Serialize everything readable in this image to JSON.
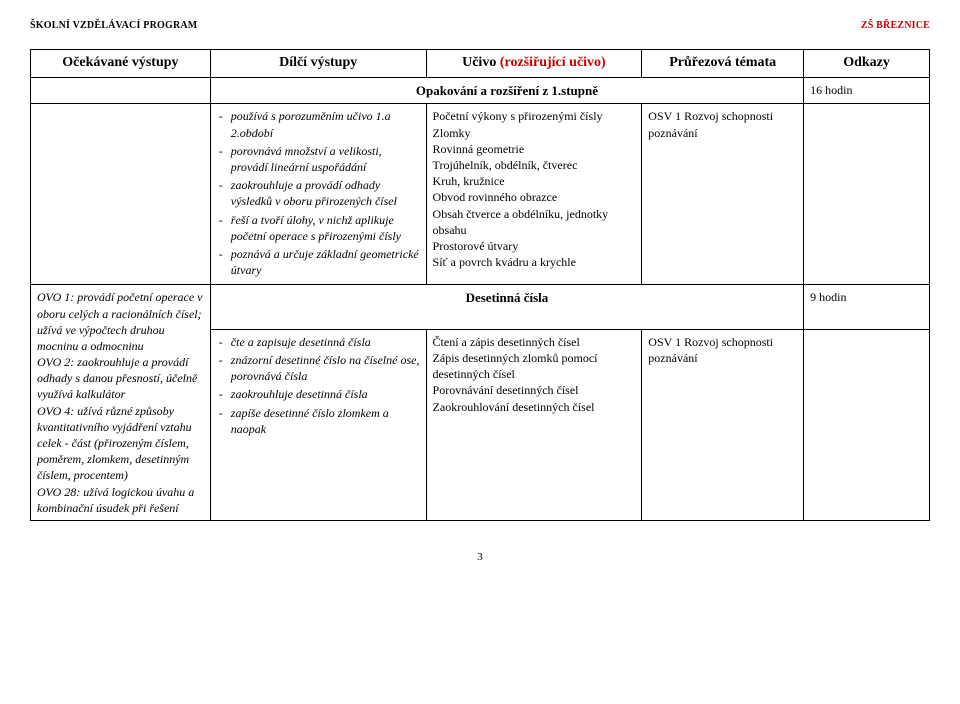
{
  "header": {
    "left": "ŠKOLNÍ VZDĚLÁVACÍ PROGRAM",
    "right": "ZŠ BŘEZNICE"
  },
  "table": {
    "headers": {
      "c1": "Očekávané výstupy",
      "c2": "Dílčí výstupy",
      "c3_pre": "Učivo ",
      "c3_red": "(rozšiřující učivo)",
      "c4": "Průřezová témata",
      "c5": "Odkazy"
    },
    "section1": {
      "title": "Opakování a rozšíření z 1.stupně",
      "hours": "16 hodin"
    },
    "row1": {
      "dilci": [
        "používá s porozuměním učivo 1.a 2.období",
        "porovnává množství a velikosti, provádí lineární uspořádání",
        "zaokrouhluje a provádí odhady výsledků v oboru přirozených čísel",
        "řeší a tvoří úlohy, v nichž aplikuje početní operace s přirozenými čísly",
        "poznává a určuje základní geometrické útvary"
      ],
      "ucivo": "Početní výkony s přirozenými čísly\nZlomky\nRovinná geometrie\nTrojúhelník, obdélník, čtverec\nKruh, kružnice\nObvod rovinného obrazce\nObsah čtverce a obdélníku, jednotky obsahu\nProstorové útvary\nSíť a povrch kvádru a krychle",
      "temata": "OSV 1   Rozvoj schopnosti poznávání"
    },
    "section2": {
      "title": "Desetinná čísla",
      "hours": "9 hodin"
    },
    "row2": {
      "ocek": "OVO 1: provádí početní operace v oboru celých a racionálních čísel; užívá ve výpočtech druhou mocninu a odmocninu\nOVO 2: zaokrouhluje a provádí odhady s danou přesností, účelně využívá kalkulátor\nOVO 4: užívá různé způsoby kvantitativního vyjádření vztahu celek - část (přirozeným číslem, poměrem, zlomkem, desetinným číslem, procentem)\nOVO 28: užívá logickou úvahu a kombinační úsudek při řešení",
      "dilci": [
        "čte a zapisuje desetinná čísla",
        "znázorní desetinné číslo na číselné ose, porovnává čísla",
        "zaokrouhluje desetinná čísla",
        "zapíše desetinné číslo zlomkem a naopak"
      ],
      "ucivo": "Čtení a zápis desetinných čísel\nZápis desetinných zlomků pomocí desetinných čísel\nPorovnávání desetinných čísel\nZaokrouhlování desetinných čísel",
      "temata": "OSV 1   Rozvoj schopnosti poznávání"
    }
  },
  "page_number": "3"
}
